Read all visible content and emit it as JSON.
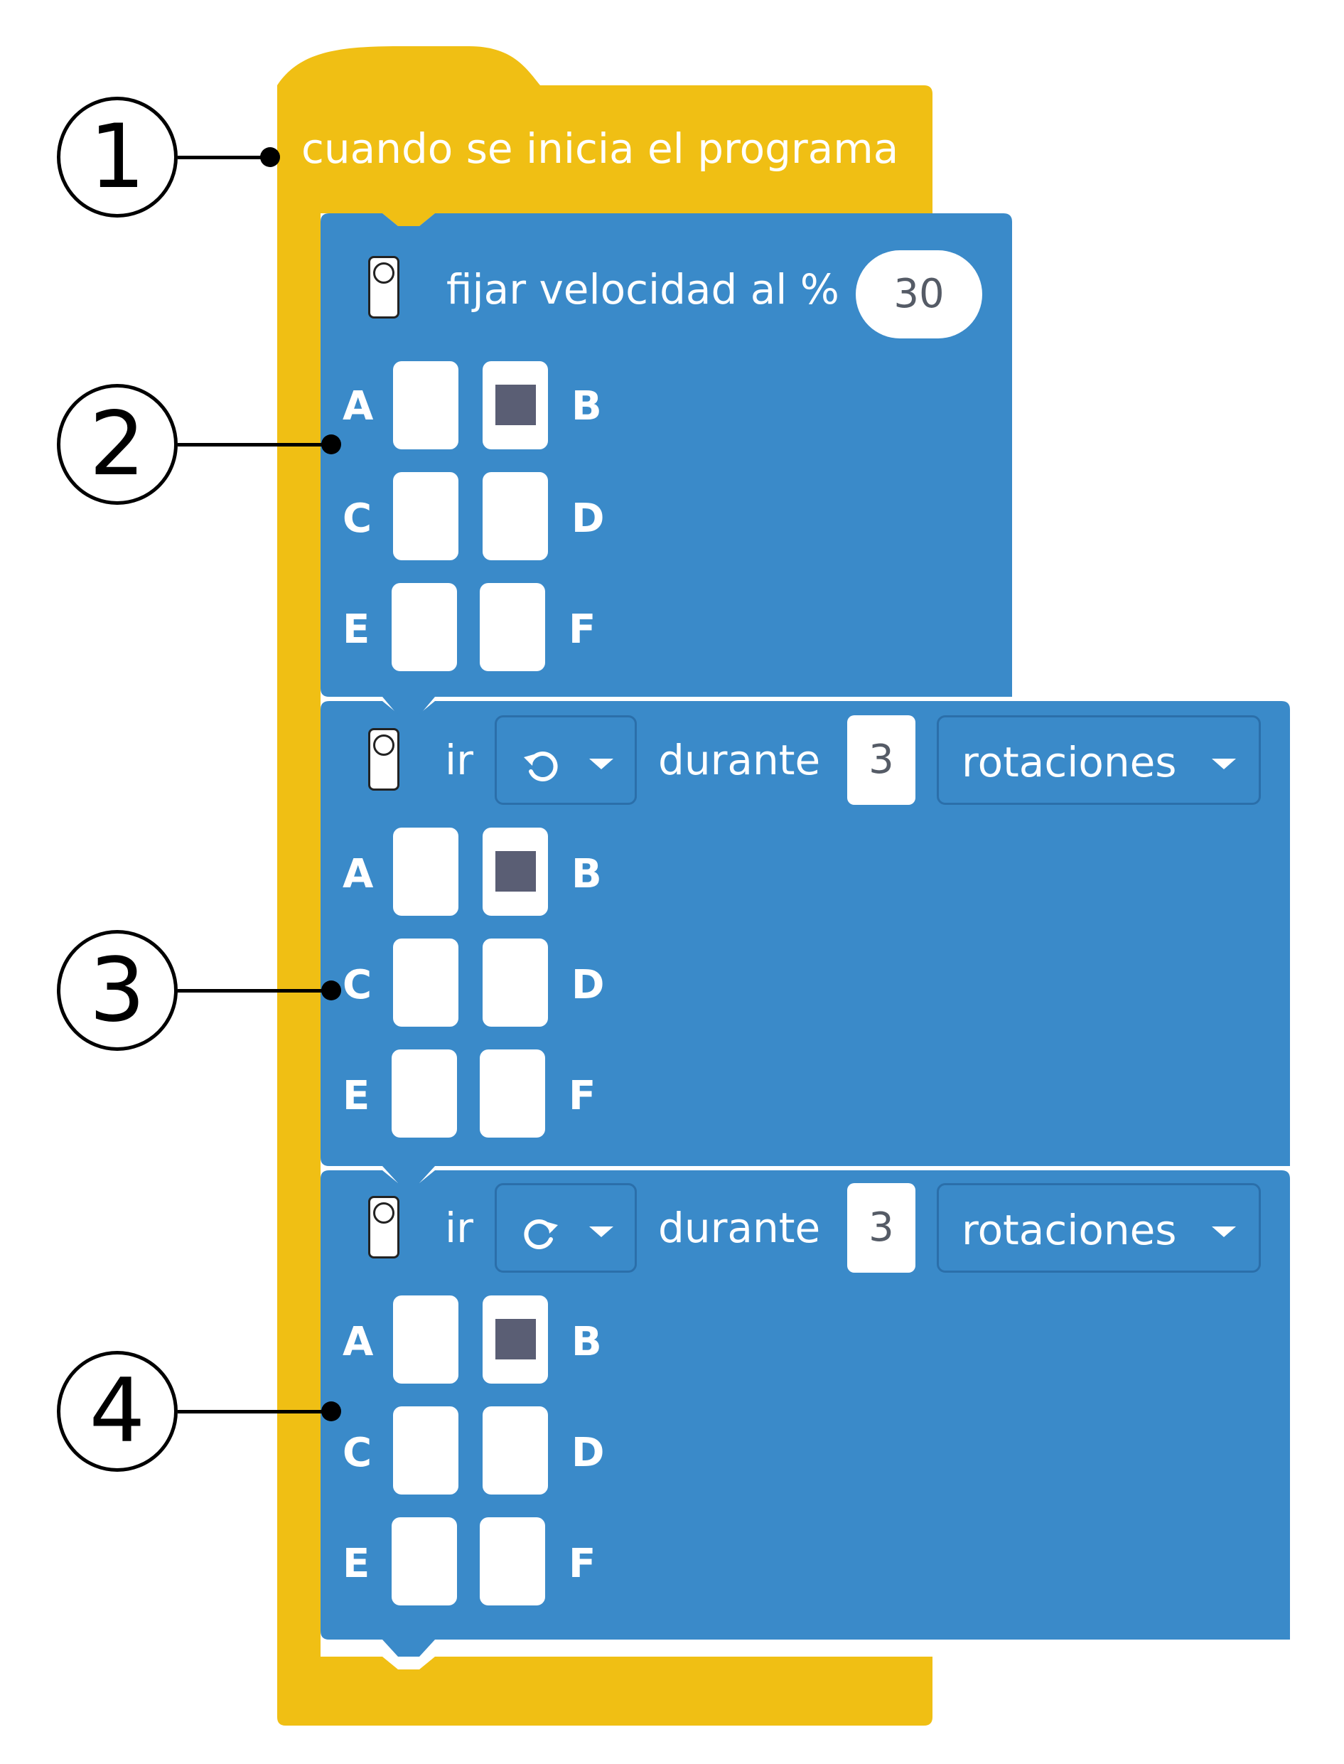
{
  "colors": {
    "event_block": "#f0bf14",
    "motor_block": "#3a8ac9",
    "selected_port": "#5a5e74"
  },
  "callouts": [
    "1",
    "2",
    "3",
    "4"
  ],
  "event_block": {
    "label": "cuando se inicia el programa"
  },
  "blocks": [
    {
      "icon": "motor-pair-icon",
      "label": "fijar velocidad al %",
      "value": "30",
      "ports": [
        {
          "label": "A",
          "selected": false
        },
        {
          "label": "B",
          "selected": true
        },
        {
          "label": "C",
          "selected": false
        },
        {
          "label": "D",
          "selected": false
        },
        {
          "label": "E",
          "selected": false
        },
        {
          "label": "F",
          "selected": false
        }
      ]
    },
    {
      "icon": "motor-pair-icon",
      "label": "ir",
      "direction_icon": "counterclockwise-icon",
      "during_label": "durante",
      "value": "3",
      "unit": "rotaciones",
      "ports": [
        {
          "label": "A",
          "selected": false
        },
        {
          "label": "B",
          "selected": true
        },
        {
          "label": "C",
          "selected": false
        },
        {
          "label": "D",
          "selected": false
        },
        {
          "label": "E",
          "selected": false
        },
        {
          "label": "F",
          "selected": false
        }
      ]
    },
    {
      "icon": "motor-pair-icon",
      "label": "ir",
      "direction_icon": "clockwise-icon",
      "during_label": "durante",
      "value": "3",
      "unit": "rotaciones",
      "ports": [
        {
          "label": "A",
          "selected": false
        },
        {
          "label": "B",
          "selected": true
        },
        {
          "label": "C",
          "selected": false
        },
        {
          "label": "D",
          "selected": false
        },
        {
          "label": "E",
          "selected": false
        },
        {
          "label": "F",
          "selected": false
        }
      ]
    }
  ]
}
